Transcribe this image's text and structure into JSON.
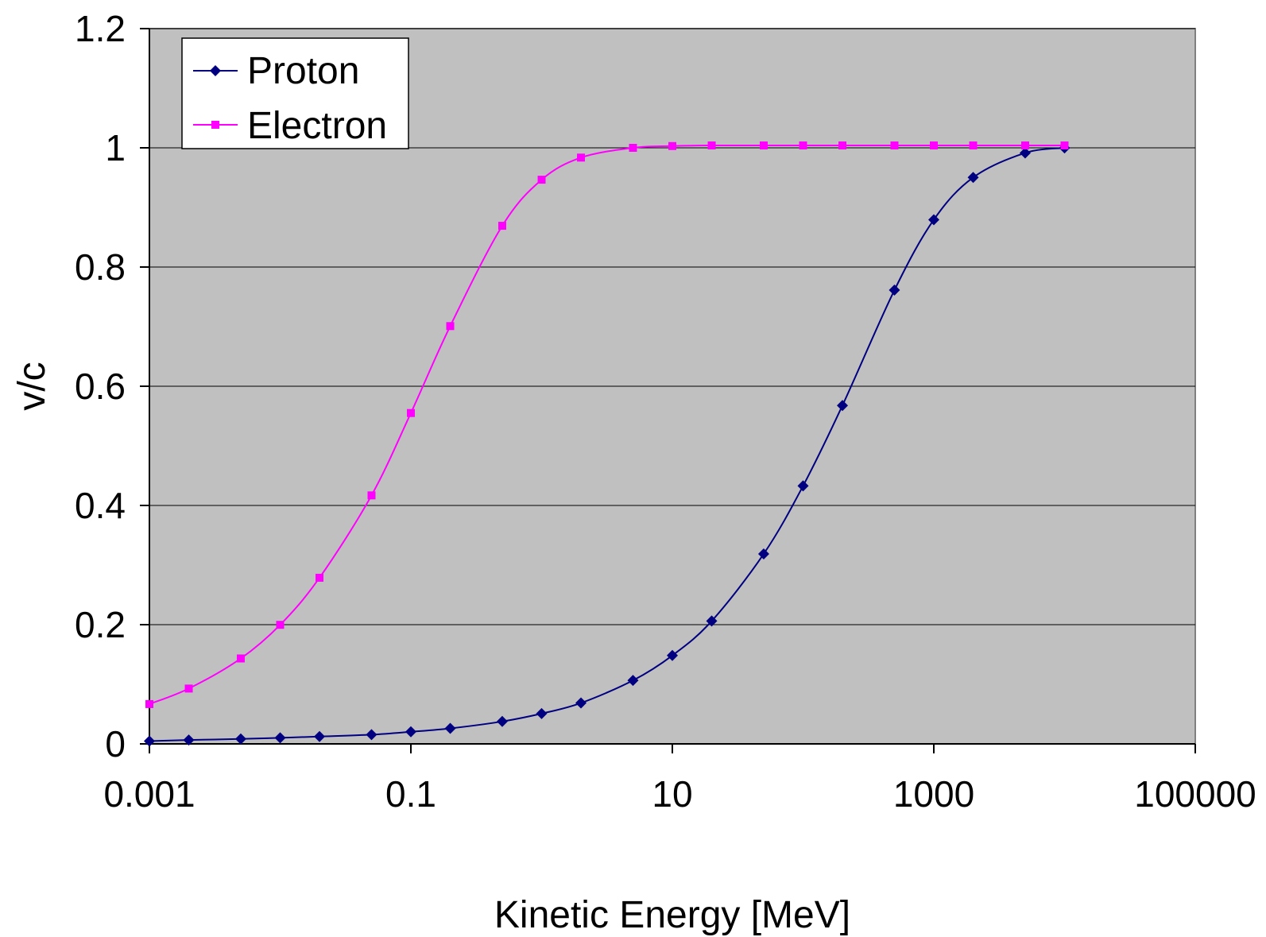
{
  "chart_data": {
    "type": "line",
    "title": "",
    "xlabel": "Kinetic Energy [MeV]",
    "ylabel": "v/c",
    "x_scale": "log",
    "xlim": [
      0.001,
      100000
    ],
    "ylim": [
      0,
      1.2
    ],
    "x_ticks": [
      "0.001",
      "0.1",
      "10",
      "1000",
      "100000"
    ],
    "y_ticks": [
      "0",
      "0.2",
      "0.4",
      "0.6",
      "0.8",
      "1",
      "1.2"
    ],
    "grid": "horizontal major gridlines",
    "plot_background": "#c0c0c0",
    "legend_position": "top-left",
    "series": [
      {
        "name": "Proton",
        "color": "#000080",
        "marker": "diamond",
        "x": [
          0.001,
          0.002,
          0.005,
          0.01,
          0.02,
          0.05,
          0.1,
          0.2,
          0.5,
          1,
          2,
          5,
          10,
          20,
          50,
          100,
          200,
          500,
          1000,
          2000,
          5000,
          10000
        ],
        "y": [
          0.0046,
          0.0065,
          0.0083,
          0.0101,
          0.0124,
          0.0155,
          0.0203,
          0.026,
          0.0376,
          0.0508,
          0.0686,
          0.1065,
          0.1483,
          0.2061,
          0.3187,
          0.4328,
          0.5677,
          0.7613,
          0.8794,
          0.9503,
          0.9914,
          0.9999
        ]
      },
      {
        "name": "Electron",
        "color": "#ff00ff",
        "marker": "square",
        "x": [
          0.001,
          0.002,
          0.005,
          0.01,
          0.02,
          0.05,
          0.1,
          0.2,
          0.5,
          1,
          2,
          5,
          10,
          20,
          50,
          100,
          200,
          500,
          1000,
          2000,
          5000,
          10000
        ],
        "y": [
          0.0668,
          0.0928,
          0.1433,
          0.1997,
          0.2787,
          0.4169,
          0.5551,
          0.7009,
          0.8692,
          0.9465,
          0.9836,
          1.0,
          1.003,
          1.004,
          1.004,
          1.004,
          1.004,
          1.004,
          1.004,
          1.004,
          1.004,
          1.004
        ]
      }
    ]
  }
}
